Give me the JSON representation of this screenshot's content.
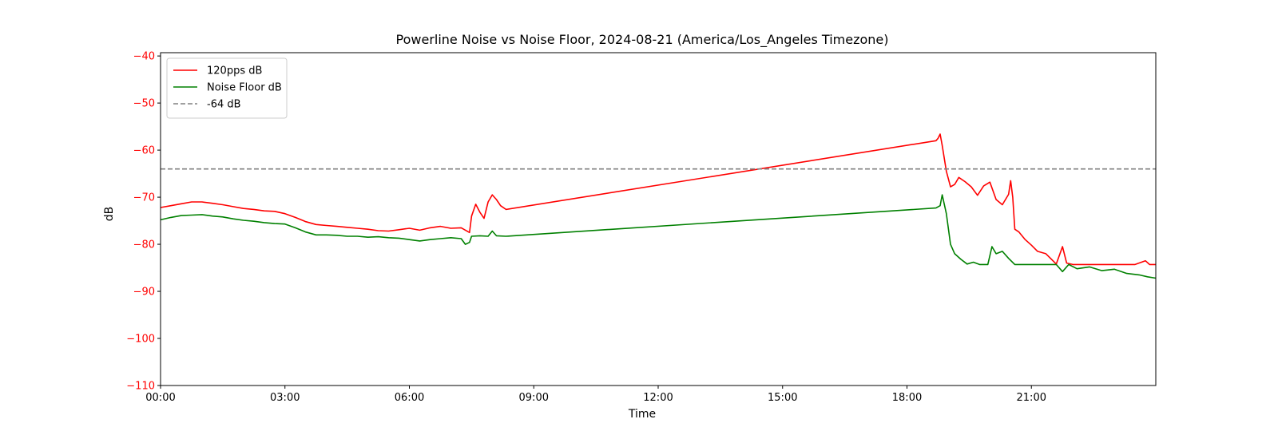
{
  "chart_data": {
    "type": "line",
    "title": "Powerline Noise vs Noise Floor, 2024-08-21 (America/Los_Angeles Timezone)",
    "xlabel": "Time",
    "ylabel": "dB",
    "ylabel_color": "#ff0000",
    "xlim": [
      0,
      24
    ],
    "ylim": [
      -110,
      -39.3
    ],
    "x_ticks": [
      {
        "value": 0,
        "label": "00:00"
      },
      {
        "value": 3,
        "label": "03:00"
      },
      {
        "value": 6,
        "label": "06:00"
      },
      {
        "value": 9,
        "label": "09:00"
      },
      {
        "value": 12,
        "label": "12:00"
      },
      {
        "value": 15,
        "label": "15:00"
      },
      {
        "value": 18,
        "label": "18:00"
      },
      {
        "value": 21,
        "label": "21:00"
      }
    ],
    "y_ticks": [
      {
        "value": -40,
        "label": "−40"
      },
      {
        "value": -50,
        "label": "−50"
      },
      {
        "value": -60,
        "label": "−60"
      },
      {
        "value": -70,
        "label": "−70"
      },
      {
        "value": -80,
        "label": "−80"
      },
      {
        "value": -90,
        "label": "−90"
      },
      {
        "value": -100,
        "label": "−100"
      },
      {
        "value": -110,
        "label": "−110"
      }
    ],
    "y_tick_color": "#ff0000",
    "legend_position": "upper-left",
    "grid": false,
    "series": [
      {
        "name": "120pps dB",
        "color": "#ff0000",
        "style": "solid",
        "points": [
          [
            0.0,
            -72.2
          ],
          [
            0.25,
            -71.8
          ],
          [
            0.5,
            -71.4
          ],
          [
            0.75,
            -71.0
          ],
          [
            1.0,
            -71.0
          ],
          [
            1.25,
            -71.3
          ],
          [
            1.5,
            -71.6
          ],
          [
            1.75,
            -72.0
          ],
          [
            2.0,
            -72.4
          ],
          [
            2.25,
            -72.6
          ],
          [
            2.5,
            -72.9
          ],
          [
            2.75,
            -73.0
          ],
          [
            3.0,
            -73.5
          ],
          [
            3.25,
            -74.3
          ],
          [
            3.5,
            -75.2
          ],
          [
            3.75,
            -75.8
          ],
          [
            4.0,
            -76.0
          ],
          [
            4.25,
            -76.2
          ],
          [
            4.5,
            -76.4
          ],
          [
            4.75,
            -76.6
          ],
          [
            5.0,
            -76.8
          ],
          [
            5.25,
            -77.1
          ],
          [
            5.5,
            -77.2
          ],
          [
            5.75,
            -76.9
          ],
          [
            6.0,
            -76.6
          ],
          [
            6.25,
            -77.0
          ],
          [
            6.5,
            -76.5
          ],
          [
            6.75,
            -76.2
          ],
          [
            7.0,
            -76.6
          ],
          [
            7.25,
            -76.5
          ],
          [
            7.45,
            -77.5
          ],
          [
            7.5,
            -74.0
          ],
          [
            7.6,
            -71.5
          ],
          [
            7.7,
            -73.2
          ],
          [
            7.8,
            -74.5
          ],
          [
            7.9,
            -71.0
          ],
          [
            8.0,
            -69.5
          ],
          [
            8.1,
            -70.5
          ],
          [
            8.2,
            -71.8
          ],
          [
            8.33,
            -72.6
          ],
          [
            18.7,
            -58.0
          ],
          [
            18.75,
            -57.5
          ],
          [
            18.8,
            -56.6
          ],
          [
            18.85,
            -59.0
          ],
          [
            18.95,
            -64.5
          ],
          [
            19.05,
            -67.8
          ],
          [
            19.15,
            -67.3
          ],
          [
            19.25,
            -65.8
          ],
          [
            19.4,
            -66.7
          ],
          [
            19.55,
            -67.8
          ],
          [
            19.7,
            -69.6
          ],
          [
            19.85,
            -67.6
          ],
          [
            20.0,
            -66.8
          ],
          [
            20.15,
            -70.5
          ],
          [
            20.3,
            -71.6
          ],
          [
            20.45,
            -69.4
          ],
          [
            20.5,
            -66.5
          ],
          [
            20.55,
            -70.0
          ],
          [
            20.6,
            -76.8
          ],
          [
            20.7,
            -77.4
          ],
          [
            20.85,
            -79.0
          ],
          [
            21.0,
            -80.2
          ],
          [
            21.15,
            -81.5
          ],
          [
            21.35,
            -82.0
          ],
          [
            21.6,
            -84.2
          ],
          [
            21.75,
            -80.5
          ],
          [
            21.85,
            -84.0
          ],
          [
            22.0,
            -84.3
          ],
          [
            22.3,
            -84.3
          ],
          [
            22.6,
            -84.3
          ],
          [
            22.9,
            -84.3
          ],
          [
            23.2,
            -84.3
          ],
          [
            23.5,
            -84.3
          ],
          [
            23.75,
            -83.5
          ],
          [
            23.85,
            -84.3
          ],
          [
            24.0,
            -84.3
          ]
        ]
      },
      {
        "name": "Noise Floor dB",
        "color": "#008000",
        "style": "solid",
        "points": [
          [
            0.0,
            -74.8
          ],
          [
            0.25,
            -74.3
          ],
          [
            0.5,
            -73.9
          ],
          [
            0.75,
            -73.8
          ],
          [
            1.0,
            -73.7
          ],
          [
            1.25,
            -74.0
          ],
          [
            1.5,
            -74.2
          ],
          [
            1.75,
            -74.6
          ],
          [
            2.0,
            -74.9
          ],
          [
            2.25,
            -75.1
          ],
          [
            2.5,
            -75.4
          ],
          [
            2.75,
            -75.6
          ],
          [
            3.0,
            -75.7
          ],
          [
            3.25,
            -76.5
          ],
          [
            3.5,
            -77.4
          ],
          [
            3.75,
            -78.0
          ],
          [
            4.0,
            -78.0
          ],
          [
            4.25,
            -78.1
          ],
          [
            4.5,
            -78.3
          ],
          [
            4.75,
            -78.3
          ],
          [
            5.0,
            -78.5
          ],
          [
            5.25,
            -78.4
          ],
          [
            5.5,
            -78.6
          ],
          [
            5.75,
            -78.7
          ],
          [
            6.0,
            -79.0
          ],
          [
            6.25,
            -79.3
          ],
          [
            6.5,
            -79.0
          ],
          [
            6.75,
            -78.8
          ],
          [
            7.0,
            -78.6
          ],
          [
            7.25,
            -78.8
          ],
          [
            7.35,
            -80.0
          ],
          [
            7.45,
            -79.6
          ],
          [
            7.5,
            -78.3
          ],
          [
            7.7,
            -78.2
          ],
          [
            7.9,
            -78.3
          ],
          [
            8.0,
            -77.2
          ],
          [
            8.1,
            -78.2
          ],
          [
            8.33,
            -78.3
          ],
          [
            18.7,
            -72.3
          ],
          [
            18.8,
            -71.8
          ],
          [
            18.85,
            -69.5
          ],
          [
            18.95,
            -73.5
          ],
          [
            19.05,
            -80.0
          ],
          [
            19.15,
            -82.0
          ],
          [
            19.3,
            -83.2
          ],
          [
            19.45,
            -84.2
          ],
          [
            19.6,
            -83.8
          ],
          [
            19.75,
            -84.3
          ],
          [
            19.95,
            -84.3
          ],
          [
            20.05,
            -80.5
          ],
          [
            20.15,
            -82.0
          ],
          [
            20.3,
            -81.5
          ],
          [
            20.45,
            -83.0
          ],
          [
            20.6,
            -84.3
          ],
          [
            20.8,
            -84.3
          ],
          [
            21.0,
            -84.3
          ],
          [
            21.3,
            -84.3
          ],
          [
            21.6,
            -84.3
          ],
          [
            21.75,
            -85.8
          ],
          [
            21.9,
            -84.3
          ],
          [
            22.1,
            -85.2
          ],
          [
            22.4,
            -84.8
          ],
          [
            22.7,
            -85.6
          ],
          [
            23.0,
            -85.3
          ],
          [
            23.3,
            -86.2
          ],
          [
            23.6,
            -86.5
          ],
          [
            23.8,
            -86.9
          ],
          [
            24.0,
            -87.2
          ]
        ]
      },
      {
        "name": "-64 dB",
        "color": "#808080",
        "style": "dashed",
        "points": [
          [
            0.0,
            -64.0
          ],
          [
            24.0,
            -64.0
          ]
        ]
      }
    ]
  }
}
